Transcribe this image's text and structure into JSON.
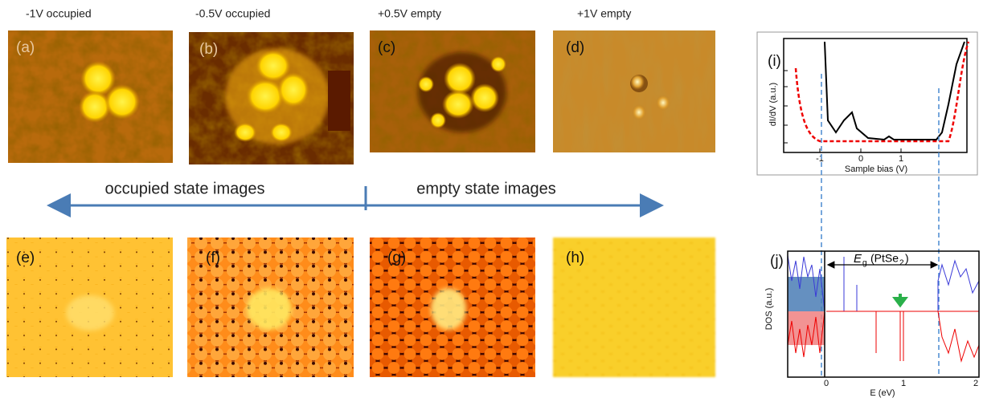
{
  "captions": [
    "-1V occupied",
    "-0.5V occupied",
    "+0.5V empty",
    "+1V empty"
  ],
  "panel_labels": [
    "(a)",
    "(b)",
    "(c)",
    "(d)",
    "(e)",
    "(f)",
    "(g)",
    "(h)"
  ],
  "arrow_texts": {
    "left": "occupied state images",
    "right": "empty state images"
  },
  "panel_i": {
    "label": "(i)",
    "y_label": "dI/dV (a.u.)",
    "x_label": "Sample bias (V)",
    "x_ticks": [
      "-1",
      "0",
      "1"
    ]
  },
  "panel_j": {
    "label": "(j)",
    "y_label": "DOS (a.u.)",
    "x_label": "E (eV)",
    "x_ticks": [
      "0",
      "1",
      "2"
    ],
    "gap_label": {
      "symbol": "E",
      "subscript": "g",
      "text": "(PtSe",
      "subscript2": "2",
      "close": ")"
    }
  }
}
